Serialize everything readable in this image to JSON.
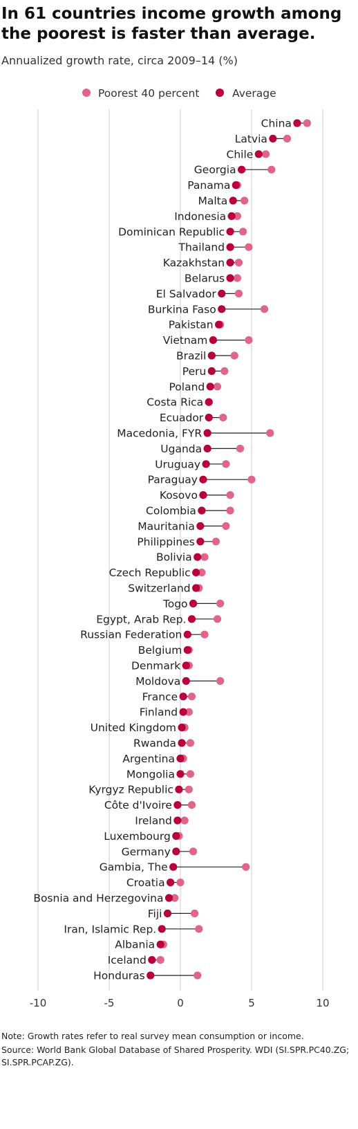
{
  "title": "In 61 countries income growth among the poorest is faster than average.",
  "subtitle": "Annualized growth rate, circa 2009–14 (%)",
  "note": "Note: Growth rates refer to real survey mean consumption or income.",
  "source": "Source: World Bank Global Database of Shared Prosperity. WDI (SI.SPR.PC40.ZG; SI.SPR.PCAP.ZG).",
  "colors": {
    "poorest": "#e0658a",
    "average": "#b8003a",
    "connector": "#222222",
    "grid": "#dddddd"
  },
  "chart_data": {
    "type": "dumbbell",
    "xlim": [
      -10,
      10
    ],
    "x_ticks": [
      -10,
      -5,
      0,
      5,
      10
    ],
    "x_tick_labels": [
      "-10",
      "-5",
      "0",
      "5",
      "10"
    ],
    "grid": true,
    "legend_position": "top",
    "series": [
      {
        "name": "Poorest 40 percent",
        "key": "poorest"
      },
      {
        "name": "Average",
        "key": "average"
      }
    ],
    "categories": [
      "China",
      "Latvia",
      "Chile",
      "Georgia",
      "Panama",
      "Malta",
      "Indonesia",
      "Dominican Republic",
      "Thailand",
      "Kazakhstan",
      "Belarus",
      "El Salvador",
      "Burkina Faso",
      "Pakistan",
      "Vietnam",
      "Brazil",
      "Peru",
      "Poland",
      "Costa Rica",
      "Ecuador",
      "Macedonia, FYR",
      "Uganda",
      "Uruguay",
      "Paraguay",
      "Kosovo",
      "Colombia",
      "Mauritania",
      "Philippines",
      "Bolivia",
      "Czech Republic",
      "Switzerland",
      "Togo",
      "Egypt, Arab Rep.",
      "Russian Federation",
      "Belgium",
      "Denmark",
      "Moldova",
      "France",
      "Finland",
      "United Kingdom",
      "Rwanda",
      "Argentina",
      "Mongolia",
      "Kyrgyz Republic",
      "Côte d'Ivoire",
      "Ireland",
      "Luxembourg",
      "Germany",
      "Gambia, The",
      "Croatia",
      "Bosnia and Herzegovina",
      "Fiji",
      "Iran, Islamic Rep.",
      "Albania",
      "Iceland",
      "Honduras"
    ],
    "poorest": [
      8.9,
      7.5,
      6.0,
      6.4,
      4.0,
      4.5,
      4.0,
      4.4,
      4.8,
      4.1,
      4.0,
      4.1,
      5.9,
      2.8,
      4.8,
      3.8,
      3.1,
      2.6,
      2.0,
      3.0,
      6.3,
      4.2,
      3.2,
      5.0,
      3.5,
      3.5,
      3.2,
      2.5,
      1.7,
      1.5,
      1.3,
      2.8,
      2.6,
      1.7,
      0.6,
      0.6,
      2.8,
      0.8,
      0.6,
      0.3,
      0.7,
      0.2,
      0.7,
      0.6,
      0.8,
      0.3,
      -0.1,
      0.9,
      4.6,
      0.0,
      -0.4,
      1.0,
      1.3,
      -1.2,
      -1.4,
      1.2
    ],
    "average": [
      8.2,
      6.5,
      5.5,
      4.3,
      3.9,
      3.7,
      3.6,
      3.5,
      3.5,
      3.5,
      3.5,
      2.9,
      2.9,
      2.7,
      2.3,
      2.2,
      2.2,
      2.1,
      2.0,
      2.0,
      1.9,
      1.9,
      1.8,
      1.6,
      1.6,
      1.5,
      1.4,
      1.4,
      1.2,
      1.1,
      1.1,
      0.9,
      0.8,
      0.5,
      0.5,
      0.4,
      0.4,
      0.2,
      0.2,
      0.1,
      0.1,
      0.0,
      0.0,
      -0.1,
      -0.2,
      -0.2,
      -0.3,
      -0.3,
      -0.5,
      -0.7,
      -0.8,
      -0.9,
      -1.3,
      -1.4,
      -2.0,
      -2.1
    ]
  }
}
